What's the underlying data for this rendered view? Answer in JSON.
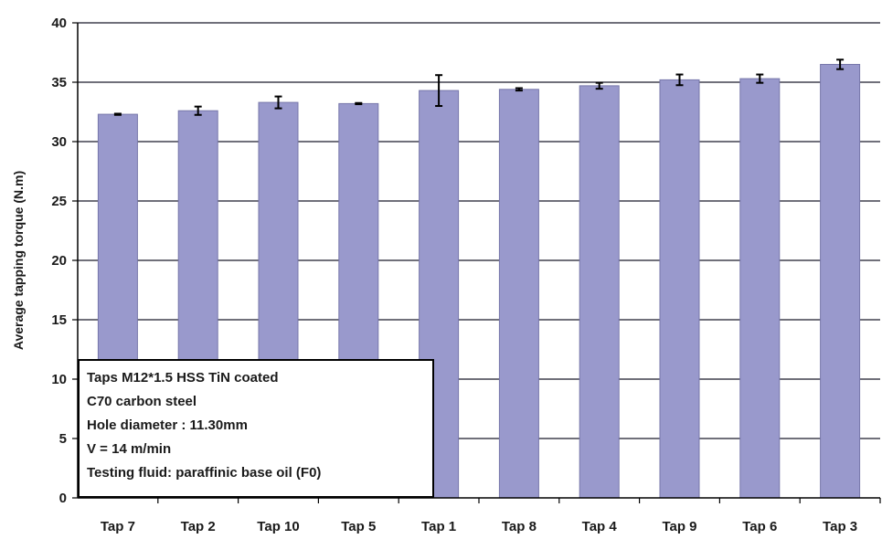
{
  "chart_data": {
    "type": "bar",
    "ylabel": "Average tapping torque (N.m)",
    "xlabel": "",
    "ylim": [
      0,
      40
    ],
    "yticks": [
      0,
      5,
      10,
      15,
      20,
      25,
      30,
      35,
      40
    ],
    "grid": true,
    "categories": [
      "Tap 7",
      "Tap 2",
      "Tap 10",
      "Tap 5",
      "Tap 1",
      "Tap 8",
      "Tap 4",
      "Tap 9",
      "Tap 6",
      "Tap 3"
    ],
    "values": [
      32.3,
      32.6,
      33.3,
      33.2,
      34.3,
      34.4,
      34.7,
      35.2,
      35.3,
      36.5
    ],
    "error": [
      0.05,
      0.35,
      0.5,
      0.05,
      1.3,
      0.1,
      0.25,
      0.45,
      0.35,
      0.4
    ],
    "colors": {
      "bar": "#9999cc",
      "bar_edge": "#7777aa",
      "grid": "#1a1a2a",
      "error_bar": "#000000"
    }
  },
  "legend_box": {
    "lines": [
      "Taps M12*1.5 HSS TiN coated",
      "C70 carbon steel",
      "Hole diameter : 11.30mm",
      "V = 14 m/min",
      "Testing fluid: paraffinic base oil (F0)"
    ]
  }
}
